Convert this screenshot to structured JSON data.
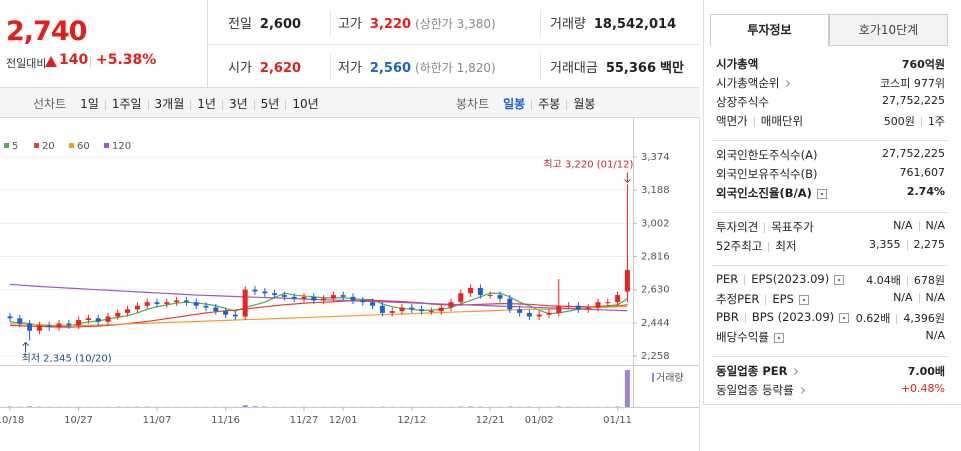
{
  "header": {
    "price": "2,740",
    "change_label": "전일대비",
    "change": "140",
    "change_rate": "+5.38%",
    "color": "#e0201b"
  },
  "stats": [
    [
      {
        "label": "전일",
        "value": "2,600",
        "color": "#222"
      },
      {
        "label": "고가",
        "value": "3,220",
        "note": "(상한가 3,380)",
        "color": "#e0201b"
      },
      {
        "label": "거래량",
        "value": "18,542,014",
        "color": "#222"
      }
    ],
    [
      {
        "label": "시가",
        "value": "2,620",
        "color": "#e0201b"
      },
      {
        "label": "저가",
        "value": "2,560",
        "note": "(하한가 1,820)",
        "color": "#1f5fd0"
      },
      {
        "label": "거래대금",
        "value": "55,366",
        "unit": "백만",
        "color": "#222"
      }
    ]
  ],
  "toolbar": {
    "line_chart": "선차트",
    "periods": [
      "1일",
      "1주일",
      "3개월",
      "1년",
      "3년",
      "5년",
      "10년"
    ],
    "candle_chart": "봉차트",
    "candle_periods": [
      "일봉",
      "주봉",
      "월봉"
    ],
    "active_candle_period": 0
  },
  "chart_data": {
    "type": "candlestick",
    "categories": [
      "10/18",
      null,
      null,
      null,
      null,
      null,
      null,
      "10/27",
      null,
      null,
      null,
      null,
      null,
      null,
      null,
      "11/07",
      null,
      null,
      null,
      null,
      null,
      null,
      "11/16",
      null,
      null,
      null,
      null,
      null,
      null,
      null,
      "11/27",
      null,
      null,
      null,
      "12/01",
      null,
      null,
      null,
      null,
      null,
      null,
      "12/12",
      null,
      null,
      null,
      null,
      null,
      null,
      null,
      "12/21",
      null,
      null,
      null,
      null,
      "01/02",
      null,
      null,
      null,
      null,
      null,
      null,
      null,
      "01/11",
      null
    ],
    "open": [
      2480,
      2470,
      2440,
      2400,
      2430,
      2420,
      2440,
      2430,
      2460,
      2470,
      2450,
      2480,
      2500,
      2520,
      2540,
      2560,
      2550,
      2560,
      2570,
      2560,
      2540,
      2530,
      2510,
      2490,
      2480,
      2630,
      2620,
      2610,
      2600,
      2590,
      2580,
      2590,
      2570,
      2580,
      2600,
      2590,
      2570,
      2560,
      2540,
      2500,
      2510,
      2530,
      2520,
      2510,
      2510,
      2530,
      2560,
      2610,
      2640,
      2600,
      2600,
      2580,
      2520,
      2500,
      2480,
      2490,
      2500,
      2540,
      2540,
      2520,
      2530,
      2560,
      2560,
      2620
    ],
    "high": [
      2500,
      2490,
      2460,
      2450,
      2450,
      2460,
      2460,
      2480,
      2490,
      2490,
      2500,
      2520,
      2540,
      2560,
      2580,
      2580,
      2580,
      2590,
      2590,
      2580,
      2560,
      2550,
      2530,
      2510,
      2650,
      2650,
      2640,
      2630,
      2620,
      2610,
      2610,
      2610,
      2600,
      2620,
      2620,
      2610,
      2590,
      2580,
      2560,
      2530,
      2550,
      2550,
      2540,
      2530,
      2550,
      2580,
      2630,
      2660,
      2660,
      2620,
      2620,
      2600,
      2540,
      2520,
      2510,
      2520,
      2690,
      2560,
      2560,
      2550,
      2580,
      2580,
      2620,
      3220
    ],
    "low": [
      2450,
      2420,
      2345,
      2380,
      2400,
      2400,
      2410,
      2410,
      2440,
      2430,
      2430,
      2460,
      2480,
      2500,
      2520,
      2530,
      2530,
      2540,
      2540,
      2520,
      2510,
      2490,
      2470,
      2460,
      2460,
      2600,
      2590,
      2580,
      2570,
      2560,
      2560,
      2550,
      2550,
      2560,
      2570,
      2550,
      2540,
      2520,
      2480,
      2480,
      2490,
      2500,
      2490,
      2490,
      2490,
      2510,
      2540,
      2590,
      2580,
      2580,
      2560,
      2500,
      2480,
      2460,
      2460,
      2470,
      2480,
      2520,
      2500,
      2500,
      2510,
      2540,
      2540,
      2560
    ],
    "close": [
      2470,
      2440,
      2400,
      2430,
      2420,
      2440,
      2430,
      2460,
      2470,
      2450,
      2480,
      2500,
      2520,
      2540,
      2560,
      2550,
      2560,
      2570,
      2560,
      2540,
      2530,
      2510,
      2490,
      2480,
      2630,
      2620,
      2610,
      2600,
      2590,
      2580,
      2590,
      2570,
      2580,
      2600,
      2590,
      2570,
      2560,
      2540,
      2500,
      2510,
      2530,
      2520,
      2510,
      2510,
      2530,
      2560,
      2610,
      2640,
      2600,
      2600,
      2580,
      2520,
      2500,
      2480,
      2490,
      2500,
      2540,
      2540,
      2520,
      2530,
      2560,
      2560,
      2600,
      2740
    ],
    "up_color": "#e8241d",
    "down_color": "#1e62d0",
    "volume": [
      210000,
      150000,
      320000,
      180000,
      120000,
      110000,
      90000,
      140000,
      100000,
      90000,
      130000,
      160000,
      150000,
      170000,
      190000,
      120000,
      100000,
      110000,
      90000,
      95000,
      100000,
      120000,
      130000,
      110000,
      900000,
      400000,
      200000,
      150000,
      120000,
      110000,
      100000,
      100000,
      90000,
      110000,
      100000,
      95000,
      90000,
      100000,
      160000,
      120000,
      100000,
      90000,
      85000,
      80000,
      90000,
      120000,
      250000,
      300000,
      180000,
      120000,
      110000,
      200000,
      150000,
      170000,
      120000,
      100000,
      280000,
      150000,
      110000,
      100000,
      120000,
      110000,
      200000,
      18542014
    ],
    "volume_color": "#a083d6",
    "volume_label": "거래량",
    "volume_ylim": [
      0,
      18542014
    ],
    "series": [
      {
        "name": "5",
        "color": "#4cae4c",
        "values": [
          2450,
          2445,
          2440,
          2430,
          2425,
          2425,
          2425,
          2440,
          2450,
          2455,
          2465,
          2475,
          2485,
          2500,
          2520,
          2535,
          2545,
          2555,
          2560,
          2555,
          2550,
          2540,
          2525,
          2510,
          2530,
          2545,
          2560,
          2585,
          2610,
          2600,
          2595,
          2590,
          2585,
          2585,
          2585,
          2580,
          2575,
          2575,
          2550,
          2535,
          2525,
          2520,
          2515,
          2515,
          2520,
          2530,
          2550,
          2570,
          2590,
          2610,
          2610,
          2590,
          2560,
          2540,
          2515,
          2495,
          2500,
          2510,
          2520,
          2525,
          2535,
          2540,
          2545,
          2580
        ]
      },
      {
        "name": "20",
        "color": "#e0403a",
        "values": [
          2430,
          2428,
          2426,
          2424,
          2422,
          2420,
          2420,
          2422,
          2424,
          2426,
          2430,
          2434,
          2440,
          2446,
          2452,
          2460,
          2468,
          2476,
          2484,
          2492,
          2500,
          2506,
          2512,
          2516,
          2522,
          2528,
          2534,
          2540,
          2546,
          2550,
          2554,
          2558,
          2560,
          2562,
          2566,
          2568,
          2570,
          2570,
          2568,
          2566,
          2564,
          2560,
          2556,
          2550,
          2546,
          2544,
          2544,
          2546,
          2548,
          2550,
          2552,
          2552,
          2550,
          2548,
          2544,
          2540,
          2538,
          2536,
          2536,
          2534,
          2534,
          2536,
          2538,
          2546
        ]
      },
      {
        "name": "60",
        "color": "#f0a030",
        "values": [
          2440,
          2438,
          2436,
          2434,
          2432,
          2430,
          2430,
          2430,
          2430,
          2432,
          2434,
          2436,
          2438,
          2440,
          2442,
          2444,
          2446,
          2448,
          2450,
          2452,
          2454,
          2456,
          2458,
          2460,
          2462,
          2464,
          2466,
          2468,
          2470,
          2472,
          2474,
          2476,
          2478,
          2480,
          2482,
          2484,
          2486,
          2488,
          2490,
          2492,
          2494,
          2496,
          2498,
          2500,
          2502,
          2504,
          2506,
          2508,
          2510,
          2512,
          2514,
          2516,
          2518,
          2520,
          2520,
          2520,
          2522,
          2524,
          2526,
          2528,
          2530,
          2532,
          2534,
          2536
        ]
      },
      {
        "name": "120",
        "color": "#9b59c9",
        "values": [
          2660,
          2656,
          2652,
          2648,
          2645,
          2642,
          2639,
          2636,
          2633,
          2630,
          2627,
          2624,
          2621,
          2618,
          2615,
          2612,
          2609,
          2606,
          2603,
          2600,
          2598,
          2596,
          2594,
          2592,
          2590,
          2588,
          2586,
          2584,
          2582,
          2580,
          2578,
          2576,
          2574,
          2572,
          2570,
          2568,
          2566,
          2564,
          2562,
          2560,
          2558,
          2556,
          2554,
          2552,
          2550,
          2548,
          2546,
          2544,
          2542,
          2540,
          2538,
          2536,
          2534,
          2532,
          2530,
          2528,
          2526,
          2524,
          2522,
          2520,
          2518,
          2516,
          2514,
          2512
        ]
      }
    ],
    "ylim": [
      2208,
      3469
    ],
    "yticks": [
      {
        "value": 3374,
        "label": "3,374"
      },
      {
        "value": 3188,
        "label": "3,188"
      },
      {
        "value": 3002,
        "label": "3,002"
      },
      {
        "value": 2816,
        "label": "2,816"
      },
      {
        "value": 2630,
        "label": "2,630"
      },
      {
        "value": 2444,
        "label": "2,444"
      },
      {
        "value": 2258,
        "label": "2,258"
      }
    ],
    "grid": true,
    "high_label": {
      "text": "최고 3,220 (01/12)",
      "value": 3220,
      "color": "#c0282d"
    },
    "low_label": {
      "text": "최저 2,345 (10/20)",
      "value": 2345,
      "color": "#1d4f7c"
    }
  },
  "sidebar": {
    "tabs": [
      "투자정보",
      "호가10단계"
    ],
    "active_tab": 0,
    "sections": [
      [
        {
          "label": [
            "시가총액"
          ],
          "value": [
            "760억원"
          ],
          "bold": true
        },
        {
          "label": [
            "시가총액순위"
          ],
          "value": [
            "코스피 977위"
          ],
          "link": true
        },
        {
          "label": [
            "상장주식수"
          ],
          "value": [
            "27,752,225"
          ]
        },
        {
          "label": [
            "액면가",
            "매매단위"
          ],
          "value": [
            "500원",
            "1주"
          ]
        }
      ],
      [
        {
          "label": [
            "외국인한도주식수(A)"
          ],
          "value": [
            "27,752,225"
          ]
        },
        {
          "label": [
            "외국인보유주식수(B)"
          ],
          "value": [
            "761,607"
          ]
        },
        {
          "label": [
            "외국인소진율(B/A)"
          ],
          "value": [
            "2.74%"
          ],
          "bold": true,
          "help": true
        }
      ],
      [
        {
          "label": [
            "투자의견",
            "목표주가"
          ],
          "value": [
            "N/A",
            "N/A"
          ]
        },
        {
          "label": [
            "52주최고",
            "최저"
          ],
          "value": [
            "3,355",
            "2,275"
          ]
        }
      ],
      [
        {
          "label": [
            "PER",
            "EPS(2023.09)"
          ],
          "value": [
            "4.04배",
            "678원"
          ],
          "help": true
        },
        {
          "label": [
            "추정PER",
            "EPS"
          ],
          "value": [
            "N/A",
            "N/A"
          ],
          "help": true
        },
        {
          "label": [
            "PBR",
            "BPS (2023.09)"
          ],
          "value": [
            "0.62배",
            "4,396원"
          ],
          "help": true
        },
        {
          "label": [
            "배당수익률"
          ],
          "value": [
            "N/A"
          ],
          "help": true
        }
      ],
      [
        {
          "label": [
            "동일업종 PER"
          ],
          "value": [
            "7.00배"
          ],
          "bold": true,
          "link": true
        },
        {
          "label": [
            "동일업종 등락률"
          ],
          "value": [
            "+0.48%"
          ],
          "link": true,
          "color": "#e0201b"
        }
      ]
    ]
  }
}
